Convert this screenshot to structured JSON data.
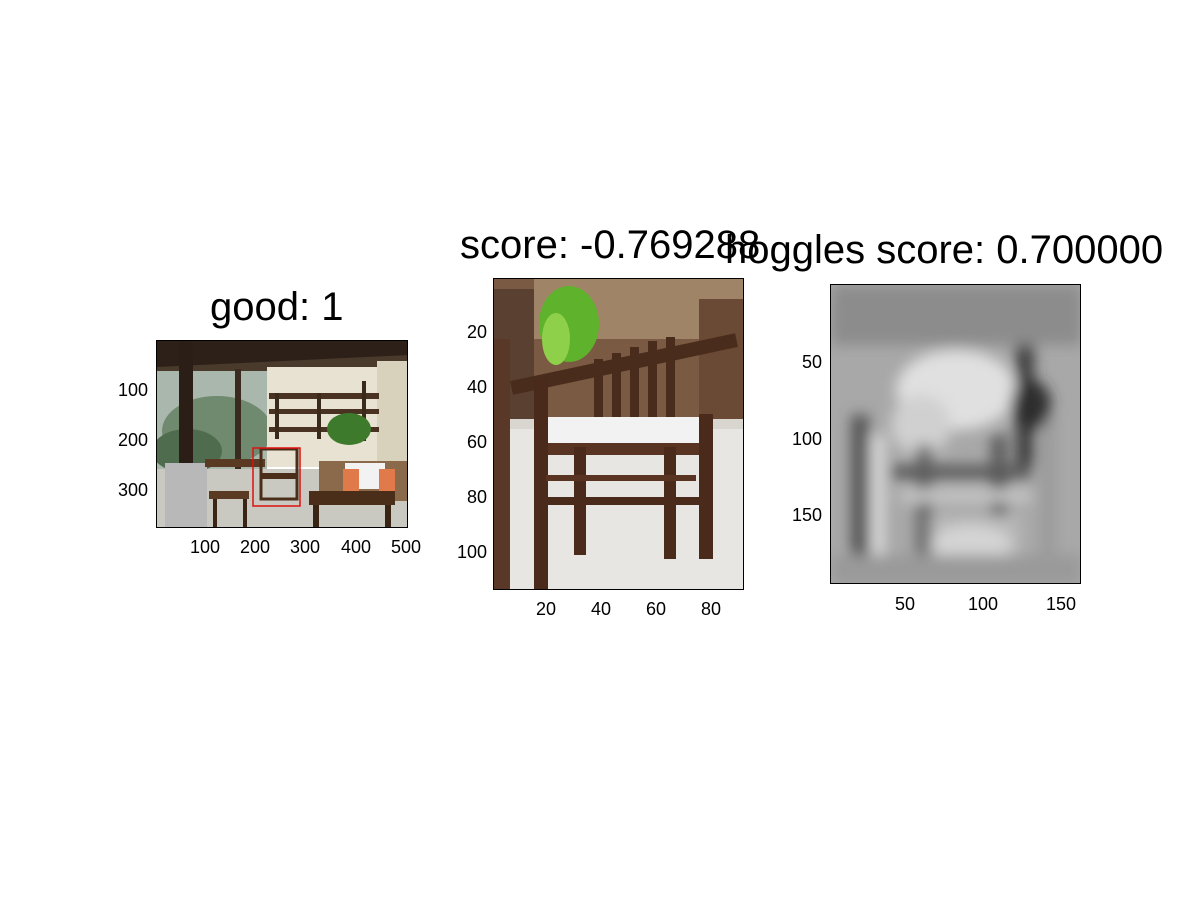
{
  "panels": [
    {
      "title": "good: 1",
      "image_desc": "photo",
      "x_ticks": [
        "100",
        "200",
        "300",
        "400",
        "500"
      ],
      "y_ticks": [
        "100",
        "200",
        "300"
      ],
      "bbox_color": "#e01010"
    },
    {
      "title": "score: -0.769288",
      "image_desc": "photo",
      "x_ticks": [
        "20",
        "40",
        "60",
        "80"
      ],
      "y_ticks": [
        "20",
        "40",
        "60",
        "80",
        "100"
      ]
    },
    {
      "title": "hoggles score: 0.700000",
      "image_desc": "grayscale",
      "x_ticks": [
        "50",
        "100",
        "150"
      ],
      "y_ticks": [
        "50",
        "100",
        "150"
      ]
    }
  ]
}
